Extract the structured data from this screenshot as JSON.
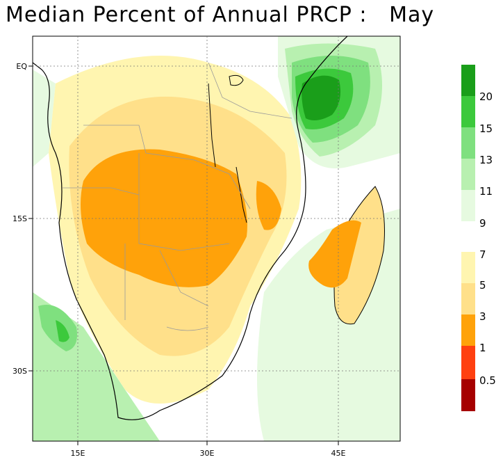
{
  "title": "Median Percent of Annual PRCP :   May",
  "map": {
    "x_ticks": [
      "15E",
      "30E",
      "45E"
    ],
    "y_ticks": [
      "EQ",
      "15S",
      "30S"
    ]
  },
  "legend": {
    "green_labels": [
      "20",
      "15",
      "13",
      "11",
      "9"
    ],
    "warm_labels": [
      "7",
      "5",
      "3",
      "1",
      "0.5"
    ],
    "colors": {
      "dark_green": "#1a9e1a",
      "green": "#3cc93c",
      "light_green": "#7fe07f",
      "pale_green": "#b8f0b0",
      "faint_green": "#e6fae0",
      "pale_yellow": "#fff5b0",
      "yellow": "#ffe08a",
      "orange": "#ffa20a",
      "red": "#ff4010",
      "dark_red": "#a60000"
    }
  }
}
